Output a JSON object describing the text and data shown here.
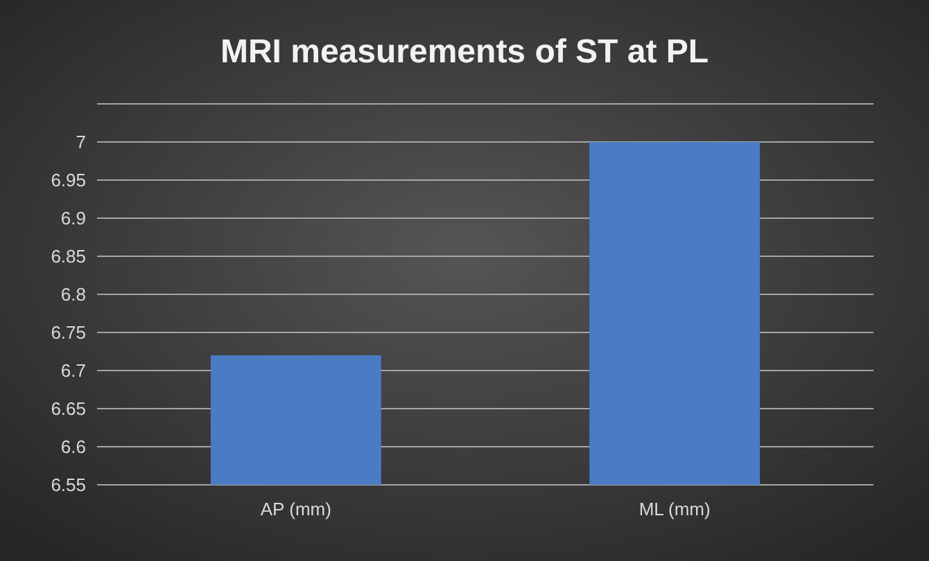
{
  "chart_data": {
    "type": "bar",
    "title": "MRI measurements of ST at PL",
    "categories": [
      "AP (mm)",
      "ML (mm)"
    ],
    "values": [
      6.72,
      7.0
    ],
    "color": "#4a7cc4",
    "ylim": [
      6.55,
      7.05
    ],
    "yticks": [
      6.55,
      6.6,
      6.65,
      6.7,
      6.75,
      6.8,
      6.85,
      6.9,
      6.95,
      7,
      {
        "value": 7.05,
        "label": null
      }
    ],
    "grid": true
  }
}
